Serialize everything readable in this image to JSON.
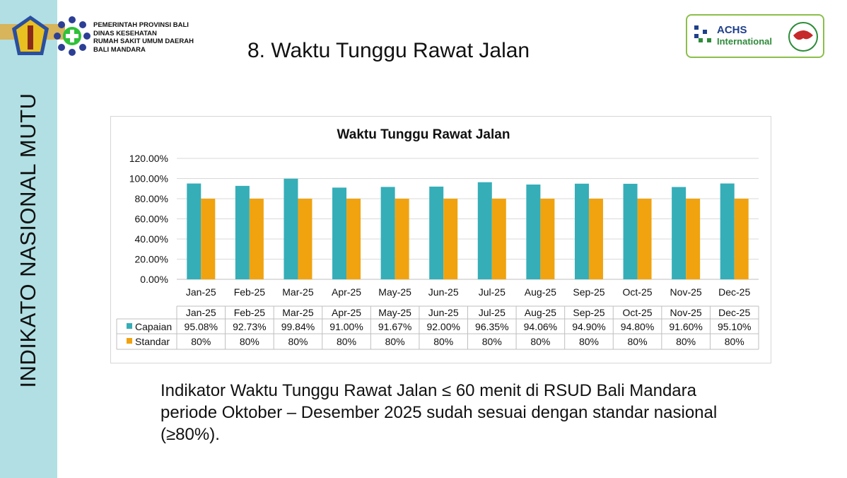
{
  "sidebar": {
    "vertical_text": "INDIKATO NASIONAL MUTU"
  },
  "header": {
    "org_lines": [
      "PEMERINTAH PROVINSI BALI",
      "DINAS KESEHATAN",
      "RUMAH SAKIT UMUM DAERAH",
      "BALI MANDARA"
    ],
    "title": "8. Waktu Tunggu Rawat Jalan",
    "accreditation": {
      "line1": "ACHS",
      "line2": "International"
    }
  },
  "chart_data": {
    "type": "bar",
    "title": "Waktu Tunggu Rawat Jalan",
    "categories": [
      "Jan-25",
      "Feb-25",
      "Mar-25",
      "Apr-25",
      "May-25",
      "Jun-25",
      "Jul-25",
      "Aug-25",
      "Sep-25",
      "Oct-25",
      "Nov-25",
      "Dec-25"
    ],
    "series": [
      {
        "name": "Capaian",
        "color": "#35aeb8",
        "values": [
          95.08,
          92.73,
          99.84,
          91.0,
          91.67,
          92.0,
          96.35,
          94.06,
          94.9,
          94.8,
          91.6,
          95.1
        ],
        "labels": [
          "95.08%",
          "92.73%",
          "99.84%",
          "91.00%",
          "91.67%",
          "92.00%",
          "96.35%",
          "94.06%",
          "94.90%",
          "94.80%",
          "91.60%",
          "95.10%"
        ]
      },
      {
        "name": "Standar",
        "color": "#f0a30f",
        "values": [
          80,
          80,
          80,
          80,
          80,
          80,
          80,
          80,
          80,
          80,
          80,
          80
        ],
        "labels": [
          "80%",
          "80%",
          "80%",
          "80%",
          "80%",
          "80%",
          "80%",
          "80%",
          "80%",
          "80%",
          "80%",
          "80%"
        ]
      }
    ],
    "yticks": [
      "0.00%",
      "20.00%",
      "40.00%",
      "60.00%",
      "80.00%",
      "100.00%",
      "120.00%"
    ],
    "ylim": [
      0,
      120
    ],
    "grid": true,
    "legend": "data-table"
  },
  "body": {
    "paragraph": "Indikator Waktu Tunggu Rawat Jalan ≤ 60 menit di RSUD Bali Mandara periode Oktober – Desember 2025 sudah sesuai dengan standar nasional  (≥80%)."
  }
}
